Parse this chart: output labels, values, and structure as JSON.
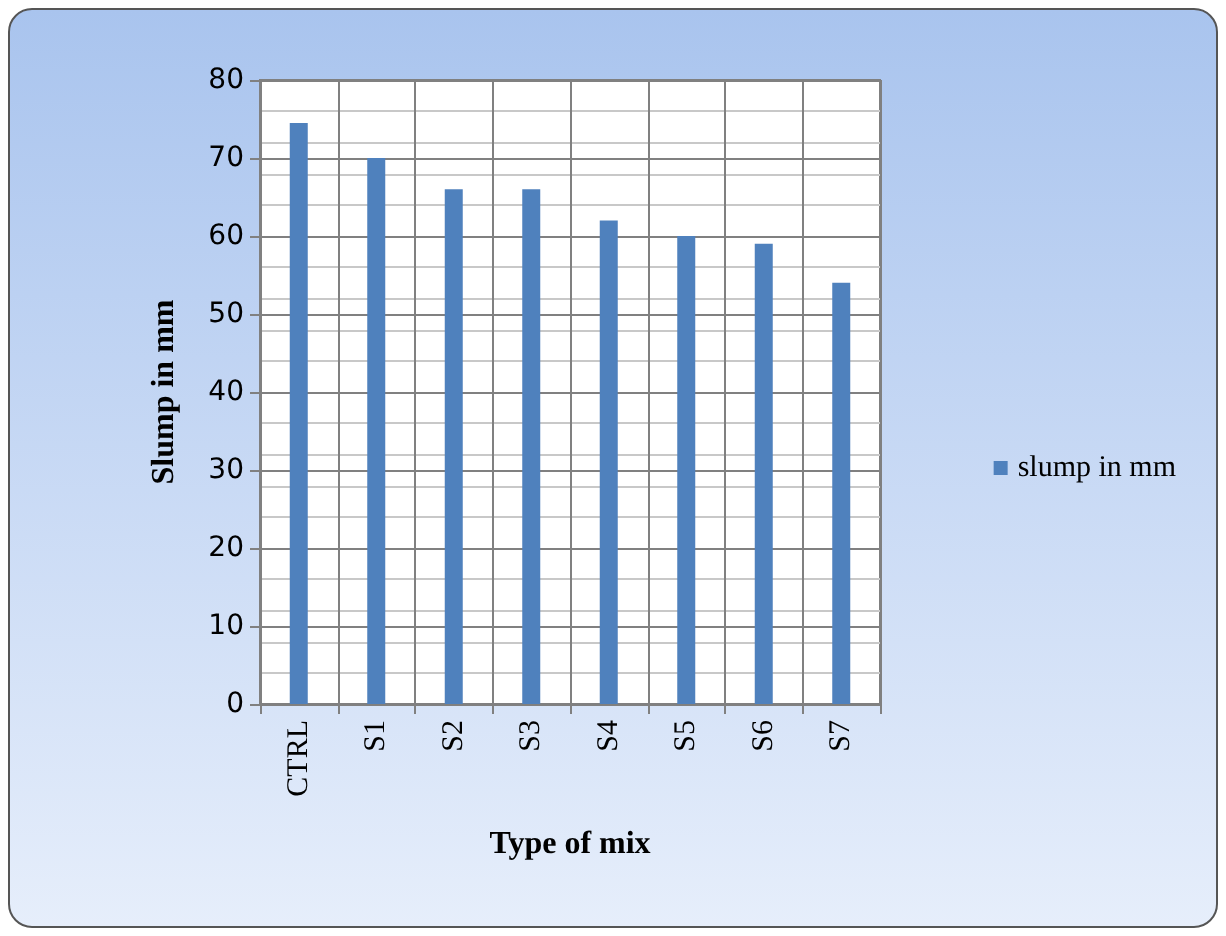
{
  "chart_data": {
    "type": "bar",
    "xlabel": "Type of mix",
    "ylabel": "Slump in mm",
    "categories": [
      "CTRL",
      "S1",
      "S2",
      "S3",
      "S4",
      "S5",
      "S6",
      "S7"
    ],
    "series": [
      {
        "name": "slump in mm",
        "color": "#4f81bd",
        "values": [
          74.5,
          70,
          66,
          66,
          62,
          60,
          59,
          54
        ]
      }
    ],
    "ylim": [
      0,
      80
    ],
    "yticks": [
      0,
      10,
      20,
      30,
      40,
      50,
      60,
      70,
      80
    ],
    "grid": true,
    "legend": "right"
  }
}
